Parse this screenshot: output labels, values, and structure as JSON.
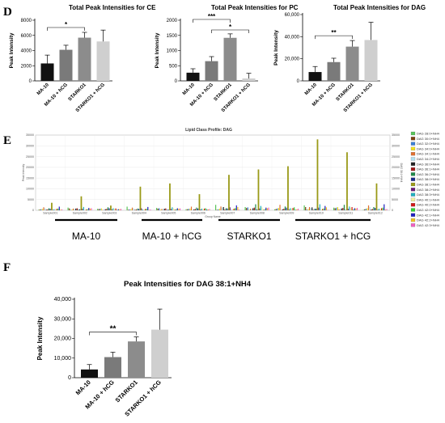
{
  "panels": {
    "D": "D",
    "E": "E",
    "F": "F"
  },
  "bar_colors": [
    "#111111",
    "#7a7a7a",
    "#8c8c8c",
    "#cfcfcf"
  ],
  "chart_data": [
    {
      "id": "ce",
      "type": "bar",
      "title": "Total Peak Intensities for CE",
      "ylabel": "Peak Intensity",
      "categories": [
        "MA-10",
        "MA-10 + hCG",
        "STARKO1",
        "STARKO1 + hCG"
      ],
      "values": [
        2300,
        4100,
        5700,
        5200
      ],
      "errors": [
        1100,
        600,
        700,
        1500
      ],
      "ylim": [
        0,
        8000
      ],
      "yticks": [
        0,
        2000,
        4000,
        6000,
        8000
      ],
      "significance": [
        {
          "from": 0,
          "to": 2,
          "label": "*"
        }
      ]
    },
    {
      "id": "pc",
      "type": "bar",
      "title": "Total Peak Intensities for PC",
      "ylabel": "Peak Intensity",
      "categories": [
        "MA-10",
        "MA-10 + hCG",
        "STARKO1",
        "STARKO1 + hCG"
      ],
      "values": [
        270,
        650,
        1420,
        80
      ],
      "errors": [
        130,
        150,
        130,
        170
      ],
      "ylim": [
        0,
        2000
      ],
      "yticks": [
        0,
        500,
        1000,
        1500,
        2000
      ],
      "significance": [
        {
          "from": 0,
          "to": 2,
          "label": "***"
        },
        {
          "from": 1,
          "to": 3,
          "label": "*"
        }
      ]
    },
    {
      "id": "dag",
      "type": "bar",
      "title": "Total Peak Intensities for DAG",
      "ylabel": "Peak Intensity",
      "categories": [
        "MA-10",
        "MA-10 + hCG",
        "STARKO1",
        "STARKO1 + hCG"
      ],
      "values": [
        8000,
        17000,
        31000,
        37000
      ],
      "errors": [
        5000,
        3500,
        5500,
        16000
      ],
      "ylim": [
        0,
        60000
      ],
      "yticks": [
        0,
        20000,
        40000,
        60000
      ],
      "ytick_labels": [
        "0",
        "20,000",
        "40,000",
        "60,000"
      ],
      "significance": [
        {
          "from": 0,
          "to": 2,
          "label": "**"
        }
      ]
    },
    {
      "id": "profile",
      "type": "bar",
      "title": "Lipid Class Profile: DAG",
      "xlabel": "Group Name",
      "ylabel": "Peak Intensity",
      "ylim": [
        0,
        35000
      ],
      "yticks": [
        0,
        5000,
        10000,
        15000,
        20000,
        25000,
        30000,
        35000
      ],
      "right_ylabel": "DAG 38:1+NH4",
      "categories": [
        "Sample001",
        "Sample002",
        "Sample003",
        "Sample004",
        "Sample005",
        "Sample006",
        "Sample007",
        "Sample008",
        "Sample009",
        "Sample010",
        "Sample011",
        "Sample012"
      ],
      "highlight_series": "DAG 38:1+NH4",
      "highlight_values": [
        3500,
        6500,
        2200,
        11000,
        12500,
        7500,
        16500,
        19000,
        20500,
        33000,
        27000,
        12500
      ],
      "legend": [
        {
          "name": "DAG 28:0+NH4",
          "color": "#58c45a"
        },
        {
          "name": "DAG 30:0+NH4",
          "color": "#7b3f10"
        },
        {
          "name": "DAG 32:0+NH4",
          "color": "#3a7fd6"
        },
        {
          "name": "DAG 34:0+NH4",
          "color": "#f0e020"
        },
        {
          "name": "DAG 34:1+NH4",
          "color": "#e07030"
        },
        {
          "name": "DAG 34:2+NH4",
          "color": "#b0e0f0"
        },
        {
          "name": "DAG 36:0+NH4",
          "color": "#222222"
        },
        {
          "name": "DAG 36:1+NH4",
          "color": "#a01818"
        },
        {
          "name": "DAG 36:2+NH4",
          "color": "#1f8a4a"
        },
        {
          "name": "DAG 38:0+NH4",
          "color": "#1a2a8a"
        },
        {
          "name": "DAG 38:1+NH4",
          "color": "#9a9a18"
        },
        {
          "name": "DAG 38:2+NH4",
          "color": "#6a1a7a"
        },
        {
          "name": "DAG 38:3+NH4",
          "color": "#20b0c0"
        },
        {
          "name": "DAG 40:1+NH4",
          "color": "#f0f0a0"
        },
        {
          "name": "DAG 40:2+NH4",
          "color": "#d01818"
        },
        {
          "name": "DAG 42:0+NH4",
          "color": "#30d030"
        },
        {
          "name": "DAG 42:1+NH4",
          "color": "#2020c0"
        },
        {
          "name": "DAG 42:2+NH4",
          "color": "#f0c020"
        },
        {
          "name": "DAG 42:3+NH4",
          "color": "#f060c0"
        }
      ],
      "groups": [
        {
          "label": "MA-10",
          "samples": [
            0,
            1,
            2
          ]
        },
        {
          "label": "MA-10 + hCG",
          "samples": [
            3,
            4,
            5
          ]
        },
        {
          "label": "STARKO1",
          "samples": [
            6,
            7,
            8
          ]
        },
        {
          "label": "STARKO1 + hCG",
          "samples": [
            9,
            10,
            11
          ]
        }
      ]
    },
    {
      "id": "dag381",
      "type": "bar",
      "title": "Peak Intensities for DAG 38:1+NH4",
      "ylabel": "Peak Intensity",
      "categories": [
        "MA-10",
        "MA-10 + hCG",
        "STARKO1",
        "STARKO1 + hCG"
      ],
      "values": [
        4200,
        10500,
        18500,
        24500
      ],
      "errors": [
        2500,
        2500,
        2300,
        10500
      ],
      "ylim": [
        0,
        40000
      ],
      "yticks": [
        0,
        10000,
        20000,
        30000,
        40000
      ],
      "ytick_labels": [
        "0",
        "10,000",
        "20,000",
        "30,000",
        "40,000"
      ],
      "significance": [
        {
          "from": 0,
          "to": 2,
          "label": "**"
        }
      ]
    }
  ]
}
